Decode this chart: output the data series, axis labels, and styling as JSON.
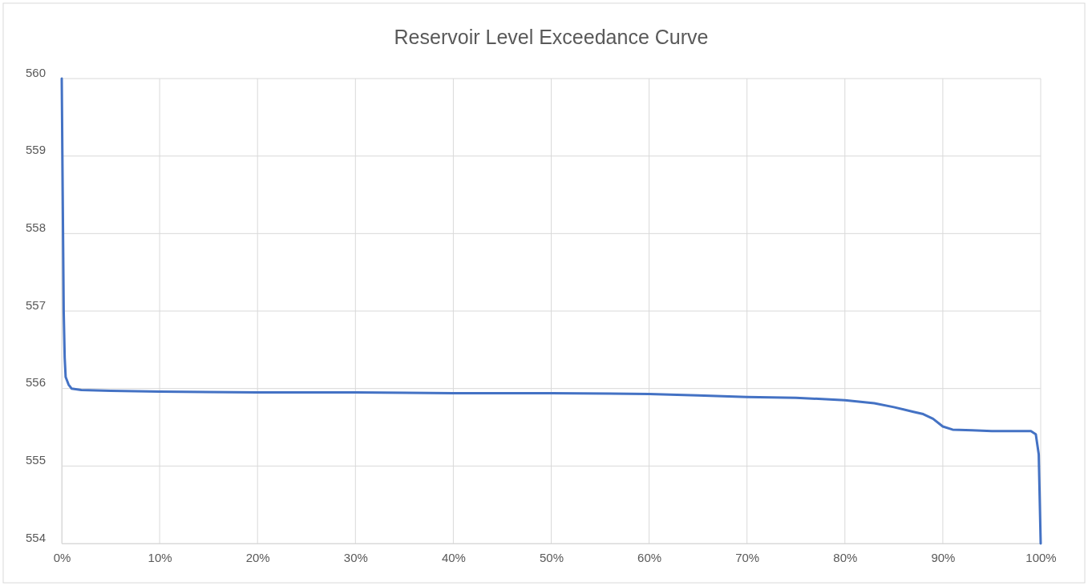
{
  "chart_data": {
    "type": "line",
    "title": "Reservoir Level Exceedance Curve",
    "x": [
      0,
      0.1,
      0.2,
      0.3,
      0.4,
      0.7,
      1,
      2,
      5,
      10,
      20,
      30,
      40,
      50,
      60,
      65,
      70,
      75,
      80,
      83,
      85,
      87,
      88,
      89,
      90,
      91,
      93,
      95,
      97,
      99,
      99.5,
      99.8,
      100
    ],
    "series": [
      {
        "color": "#4472c4",
        "values": [
          560,
          558.5,
          557,
          556.4,
          556.15,
          556.05,
          556.0,
          555.98,
          555.97,
          555.96,
          555.95,
          555.95,
          555.94,
          555.94,
          555.93,
          555.91,
          555.89,
          555.88,
          555.85,
          555.81,
          555.76,
          555.7,
          555.67,
          555.61,
          555.51,
          555.47,
          555.46,
          555.45,
          555.45,
          555.45,
          555.41,
          555.15,
          554
        ]
      }
    ],
    "xlim": [
      0,
      100
    ],
    "ylim": [
      554,
      560
    ],
    "xticks": [
      {
        "value": 0,
        "label": "0%"
      },
      {
        "value": 10,
        "label": "10%"
      },
      {
        "value": 20,
        "label": "20%"
      },
      {
        "value": 30,
        "label": "30%"
      },
      {
        "value": 40,
        "label": "40%"
      },
      {
        "value": 50,
        "label": "50%"
      },
      {
        "value": 60,
        "label": "60%"
      },
      {
        "value": 70,
        "label": "70%"
      },
      {
        "value": 80,
        "label": "80%"
      },
      {
        "value": 90,
        "label": "90%"
      },
      {
        "value": 100,
        "label": "100%"
      }
    ],
    "yticks": [
      554,
      555,
      556,
      557,
      558,
      559,
      560
    ],
    "grid": true,
    "marker": "none",
    "line_style": "solid"
  }
}
